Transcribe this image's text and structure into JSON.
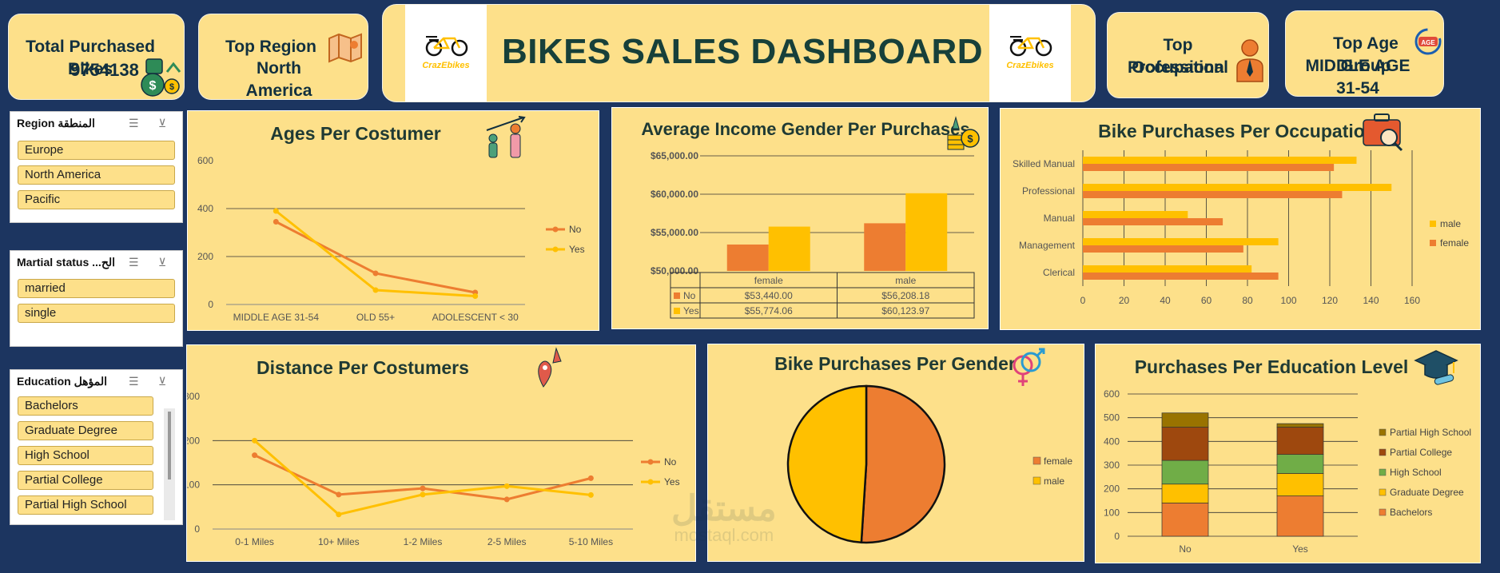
{
  "header": {
    "title": "BIKES SALES DASHBOARD",
    "logo_text": "CrazEbikes",
    "logo_text_left": "CrazEbikes"
  },
  "kpis": {
    "total_bikes": {
      "label": "Total Purchased Bikes",
      "value": "9754138"
    },
    "top_region": {
      "label": "Top Region",
      "value": "North America"
    },
    "top_occupation": {
      "label": "Top Occupation",
      "value": "Professional"
    },
    "top_age": {
      "label": "Top Age Group",
      "value": "MIDDLE AGE 31-54",
      "badge": "AGE"
    }
  },
  "slicers": {
    "region": {
      "title": "Region المنطقة",
      "items": [
        "Europe",
        "North America",
        "Pacific"
      ]
    },
    "marital": {
      "title": "Martial status ...الح",
      "items": [
        "married",
        "single"
      ]
    },
    "education": {
      "title": "Education المؤهل",
      "items": [
        "Bachelors",
        "Graduate Degree",
        "High School",
        "Partial College",
        "Partial High School"
      ]
    }
  },
  "watermark": {
    "ar": "مستقل",
    "en": "mostaql.com"
  },
  "colors": {
    "orange": "#ed7d31",
    "yellow": "#ffc000",
    "navy": "#1c3560",
    "panel": "#fde08a"
  },
  "chart_data": [
    {
      "id": "ages",
      "type": "line",
      "title": "Ages Per Costumer",
      "categories": [
        "MIDDLE AGE 31-54",
        "OLD 55+",
        "ADOLESCENT < 30"
      ],
      "series": [
        {
          "name": "No",
          "values": [
            345,
            130,
            50
          ]
        },
        {
          "name": "Yes",
          "values": [
            390,
            60,
            35
          ]
        }
      ],
      "ylim": [
        0,
        600
      ],
      "yticks": [
        "0",
        "200",
        "400",
        "600"
      ],
      "legend": "right"
    },
    {
      "id": "income",
      "type": "bar",
      "title": "Average Income Gender Per Purchases",
      "categories": [
        "female",
        "male"
      ],
      "series": [
        {
          "name": "No",
          "values": [
            53440.0,
            56208.18
          ],
          "labels": [
            "$53,440.00",
            "$56,208.18"
          ]
        },
        {
          "name": "Yes",
          "values": [
            55774.06,
            60123.97
          ],
          "labels": [
            "$55,774.06",
            "$60,123.97"
          ]
        }
      ],
      "ylim": [
        50000,
        65000
      ],
      "yticks": [
        "$50,000.00",
        "$55,000.00",
        "$60,000.00",
        "$65,000.00"
      ],
      "data_table": true
    },
    {
      "id": "occupation",
      "type": "bar",
      "orientation": "horizontal",
      "title": "Bike Purchases Per Occupation",
      "categories": [
        "Skilled Manual",
        "Professional",
        "Manual",
        "Management",
        "Clerical"
      ],
      "series": [
        {
          "name": "male",
          "values": [
            133,
            150,
            51,
            95,
            82
          ]
        },
        {
          "name": "female",
          "values": [
            122,
            126,
            68,
            78,
            95
          ]
        }
      ],
      "xlim": [
        0,
        160
      ],
      "xticks": [
        "0",
        "20",
        "40",
        "60",
        "80",
        "100",
        "120",
        "140",
        "160"
      ],
      "legend": "right"
    },
    {
      "id": "distance",
      "type": "line",
      "title": "Distance Per Costumers",
      "categories": [
        "0-1 Miles",
        "10+ Miles",
        "1-2 Miles",
        "2-5 Miles",
        "5-10 Miles"
      ],
      "series": [
        {
          "name": "No",
          "values": [
            167,
            78,
            92,
            67,
            115
          ]
        },
        {
          "name": "Yes",
          "values": [
            200,
            33,
            78,
            97,
            77
          ]
        }
      ],
      "ylim": [
        0,
        300
      ],
      "yticks": [
        "0",
        "100",
        "200",
        "300"
      ],
      "legend": "right"
    },
    {
      "id": "gender",
      "type": "pie",
      "title": "Bike Purchases Per Gender",
      "series": [
        {
          "name": "female",
          "value": 51
        },
        {
          "name": "male",
          "value": 49
        }
      ],
      "legend": "right"
    },
    {
      "id": "education",
      "type": "bar",
      "stacked": true,
      "title": "Purchases Per Education Level",
      "categories": [
        "No",
        "Yes"
      ],
      "series": [
        {
          "name": "Bachelors",
          "values": [
            140,
            170
          ]
        },
        {
          "name": "Graduate Degree",
          "values": [
            80,
            95
          ]
        },
        {
          "name": "High School",
          "values": [
            100,
            80
          ]
        },
        {
          "name": "Partial College",
          "values": [
            140,
            115
          ]
        },
        {
          "name": "Partial High School",
          "values": [
            60,
            15
          ]
        }
      ],
      "ylim": [
        0,
        600
      ],
      "yticks": [
        "0",
        "100",
        "200",
        "300",
        "400",
        "500",
        "600"
      ],
      "legend": "right"
    }
  ]
}
